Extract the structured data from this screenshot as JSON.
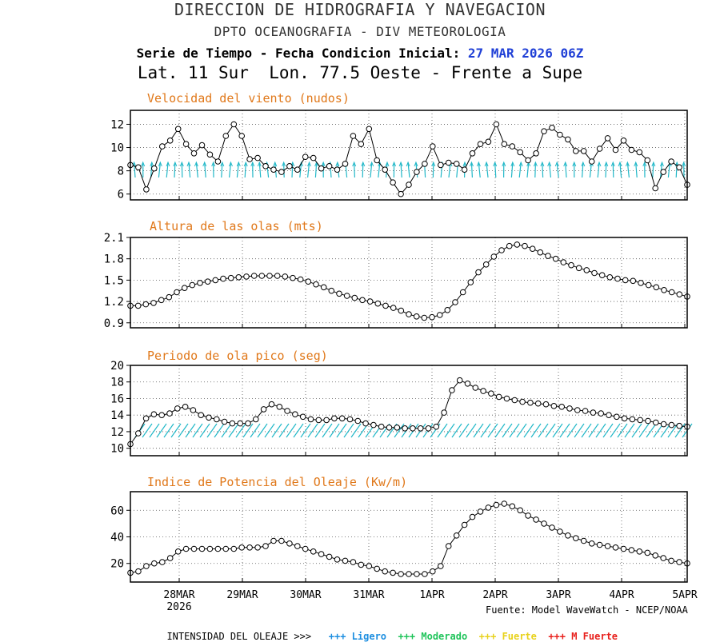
{
  "header": {
    "line1": "DIRECCION DE HIDROGRAFIA Y NAVEGACION",
    "line2": "DPTO OCEANOGRAFIA - DIV METEOROLOGIA",
    "line3_prefix": "Serie de Tiempo - Fecha Condicion Inicial:",
    "line3_date": "27 MAR 2026 06Z",
    "line4": "Lat. 11 Sur  Lon. 77.5 Oeste - Frente a Supe"
  },
  "colors": {
    "title": "#e0781a",
    "arrows": "#22b8c8",
    "cond_date": "#1f3fd6",
    "ligero": "#1c8ee0",
    "moderado": "#1fc45a",
    "fuerte": "#e8d21c",
    "mfuerte": "#e8201c"
  },
  "x_axis": {
    "ticks": [
      {
        "label": "28MAR",
        "sub": "2026"
      },
      {
        "label": "29MAR",
        "sub": ""
      },
      {
        "label": "30MAR",
        "sub": ""
      },
      {
        "label": "31MAR",
        "sub": ""
      },
      {
        "label": "1APR",
        "sub": ""
      },
      {
        "label": "2APR",
        "sub": ""
      },
      {
        "label": "3APR",
        "sub": ""
      },
      {
        "label": "4APR",
        "sub": ""
      },
      {
        "label": "5APR",
        "sub": ""
      }
    ]
  },
  "footer": {
    "source": "Fuente: Model WaveWatch - NCEP/NOAA",
    "intensity_label": "INTENSIDAD DEL OLEAJE >>>",
    "ligero": "+++ Ligero",
    "moderado": "+++ Moderado",
    "fuerte": "+++ Fuerte",
    "mfuerte": "+++ M Fuerte"
  },
  "chart_data": [
    {
      "type": "line",
      "title": "Velocidad del viento (nudos)",
      "ylim": [
        5.5,
        13.2
      ],
      "yticks": [
        6,
        8,
        10,
        12
      ],
      "arrows": true,
      "grid": true,
      "values": [
        8.5,
        8.3,
        6.4,
        8.2,
        10.1,
        10.6,
        11.6,
        10.3,
        9.5,
        10.2,
        9.4,
        8.8,
        11,
        12,
        11,
        9,
        9.1,
        8.4,
        8.1,
        7.9,
        8.4,
        8.1,
        9.2,
        9.1,
        8.2,
        8.4,
        8.1,
        8.6,
        11,
        10.3,
        11.6,
        8.9,
        8.1,
        7,
        6,
        6.8,
        7.9,
        8.6,
        10.1,
        8.5,
        8.7,
        8.6,
        8.1,
        9.5,
        10.3,
        10.5,
        12,
        10.3,
        10.1,
        9.6,
        8.9,
        9.5,
        11.4,
        11.7,
        11.1,
        10.7,
        9.7,
        9.7,
        8.8,
        9.9,
        10.8,
        9.8,
        10.6,
        9.8,
        9.6,
        8.9,
        6.5,
        7.9,
        8.8,
        8.3,
        6.8
      ]
    },
    {
      "type": "line",
      "title": "Altura de las olas (mts)",
      "ylim": [
        0.83,
        2.1
      ],
      "yticks": [
        0.9,
        1.2,
        1.5,
        1.8,
        2.1
      ],
      "yticklabels": [
        "0.9",
        "1.2",
        "1.5",
        "1.8",
        "2.1"
      ],
      "grid": true,
      "values": [
        1.14,
        1.14,
        1.16,
        1.18,
        1.22,
        1.26,
        1.33,
        1.39,
        1.43,
        1.46,
        1.48,
        1.5,
        1.52,
        1.53,
        1.54,
        1.55,
        1.56,
        1.56,
        1.56,
        1.56,
        1.55,
        1.53,
        1.51,
        1.48,
        1.44,
        1.4,
        1.35,
        1.31,
        1.28,
        1.25,
        1.22,
        1.2,
        1.17,
        1.14,
        1.11,
        1.07,
        1.02,
        0.99,
        0.97,
        0.98,
        1.01,
        1.08,
        1.19,
        1.33,
        1.47,
        1.61,
        1.72,
        1.83,
        1.92,
        1.98,
        2.0,
        1.98,
        1.94,
        1.89,
        1.84,
        1.8,
        1.75,
        1.71,
        1.67,
        1.64,
        1.6,
        1.57,
        1.54,
        1.52,
        1.5,
        1.49,
        1.46,
        1.43,
        1.4,
        1.36,
        1.33,
        1.3,
        1.27
      ]
    },
    {
      "type": "line",
      "title": "Periodo de ola pico (seg)",
      "ylim": [
        9.1,
        20
      ],
      "yticks": [
        10,
        12,
        14,
        16,
        18,
        20
      ],
      "arrows": true,
      "grid": true,
      "values": [
        10.5,
        11.8,
        13.6,
        14.1,
        14,
        14.2,
        14.8,
        15,
        14.6,
        14,
        13.7,
        13.5,
        13.2,
        13,
        13,
        13,
        13.5,
        14.7,
        15.3,
        15,
        14.5,
        14.1,
        13.8,
        13.5,
        13.4,
        13.4,
        13.6,
        13.6,
        13.5,
        13.3,
        13,
        12.8,
        12.6,
        12.5,
        12.5,
        12.4,
        12.4,
        12.4,
        12.4,
        12.6,
        14.3,
        17,
        18.2,
        17.8,
        17.3,
        16.9,
        16.6,
        16.2,
        16,
        15.8,
        15.6,
        15.5,
        15.4,
        15.3,
        15.1,
        15,
        14.8,
        14.6,
        14.5,
        14.3,
        14.2,
        14,
        13.8,
        13.6,
        13.5,
        13.4,
        13.3,
        13.1,
        12.9,
        12.8,
        12.7,
        12.6
      ]
    },
    {
      "type": "line",
      "title": "Indice de Potencia del Oleaje (Kw/m)",
      "ylim": [
        6,
        74
      ],
      "yticks": [
        20,
        40,
        60
      ],
      "grid": true,
      "values": [
        13,
        14,
        18,
        20,
        21,
        24,
        29,
        31,
        31,
        31,
        31,
        31,
        31,
        31,
        32,
        32,
        32,
        33,
        37,
        37,
        35,
        33,
        31,
        29,
        27,
        25,
        23,
        22,
        21,
        19,
        18,
        16,
        14,
        13,
        12,
        12,
        12,
        12,
        14,
        18,
        33,
        41,
        49,
        55,
        59,
        62,
        64,
        65,
        63,
        60,
        56,
        53,
        50,
        47,
        44,
        41,
        39,
        37,
        35,
        34,
        33,
        32,
        31,
        30,
        29,
        28,
        26,
        24,
        22,
        21,
        20
      ]
    }
  ]
}
